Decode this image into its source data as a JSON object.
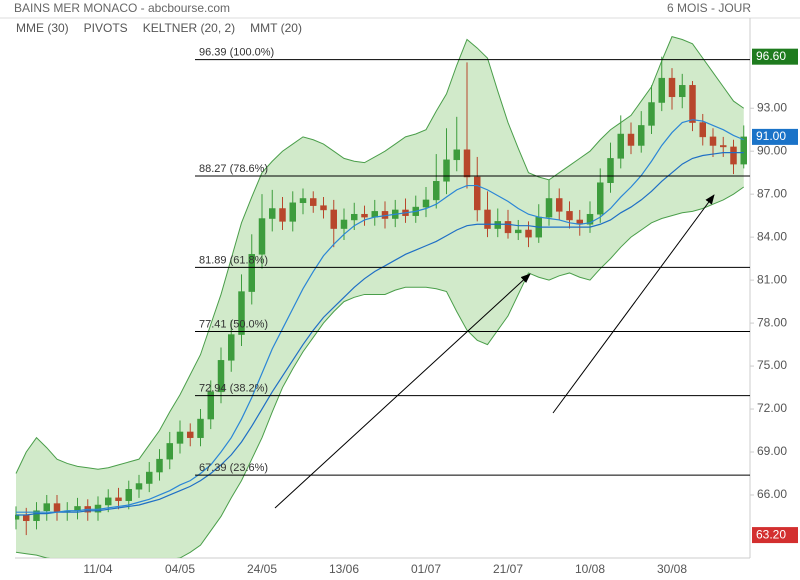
{
  "chart_data": {
    "type": "candlestick",
    "title": "BAINS MER MONACO - abcbourse.com",
    "subtitle": "6 MOIS - JOUR",
    "categories": [
      null,
      null,
      null,
      null,
      null,
      null,
      null,
      null,
      "11/04",
      null,
      null,
      null,
      null,
      null,
      null,
      null,
      "04/05",
      null,
      null,
      null,
      null,
      null,
      null,
      null,
      "24/05",
      null,
      null,
      null,
      null,
      null,
      null,
      null,
      "13/06",
      null,
      null,
      null,
      null,
      null,
      null,
      null,
      "01/07",
      null,
      null,
      null,
      null,
      null,
      null,
      null,
      "21/07",
      null,
      null,
      null,
      null,
      null,
      null,
      null,
      "10/08",
      null,
      null,
      null,
      null,
      null,
      null,
      null,
      "30/08",
      null,
      null,
      null,
      null,
      null,
      null,
      null
    ],
    "open": [
      64.3,
      64.6,
      64.2,
      64.9,
      65.4,
      64.8,
      64.9,
      65.2,
      64.8,
      65.3,
      65.8,
      65.6,
      66.4,
      66.8,
      67.6,
      68.5,
      69.6,
      70.4,
      70.0,
      71.3,
      73.2,
      75.4,
      77.2,
      80.2,
      82.8,
      85.3,
      86.0,
      85.1,
      86.4,
      86.7,
      86.2,
      85.9,
      84.6,
      85.2,
      85.6,
      85.4,
      85.8,
      85.3,
      85.9,
      85.5,
      86.1,
      86.6,
      87.9,
      89.4,
      90.1,
      88.2,
      85.9,
      84.6,
      85.1,
      84.3,
      84.5,
      84.0,
      85.4,
      86.7,
      85.8,
      85.2,
      84.9,
      85.6,
      87.8,
      89.5,
      91.2,
      90.4,
      91.8,
      93.4,
      95.1,
      93.8,
      94.6,
      92.0,
      91.0,
      90.4,
      90.3,
      89.1
    ],
    "high": [
      65.2,
      65.1,
      65.5,
      66.0,
      66.0,
      65.5,
      65.8,
      65.7,
      65.9,
      66.4,
      66.5,
      67.0,
      67.4,
      68.3,
      69.2,
      70.4,
      71.2,
      71.0,
      72.0,
      74.0,
      76.3,
      78.2,
      81.4,
      84.2,
      87.0,
      87.3,
      86.8,
      87.2,
      87.4,
      87.2,
      86.8,
      86.6,
      86.0,
      86.4,
      86.2,
      86.6,
      86.5,
      86.6,
      86.7,
      86.9,
      87.5,
      89.8,
      91.6,
      92.4,
      96.2,
      89.6,
      87.2,
      86.0,
      85.9,
      85.2,
      85.1,
      86.3,
      88.0,
      87.4,
      86.5,
      85.9,
      86.5,
      88.8,
      90.6,
      92.5,
      92.0,
      92.8,
      94.6,
      96.6,
      95.8,
      95.4,
      94.9,
      92.6,
      91.6,
      91.0,
      90.8,
      91.8
    ],
    "low": [
      63.6,
      63.2,
      63.6,
      64.2,
      64.2,
      64.2,
      64.3,
      64.2,
      64.2,
      64.8,
      65.0,
      65.0,
      65.8,
      66.2,
      67.0,
      67.8,
      68.9,
      69.4,
      69.4,
      70.6,
      72.4,
      74.6,
      76.4,
      79.3,
      81.8,
      84.4,
      84.5,
      84.4,
      85.6,
      85.7,
      85.3,
      83.3,
      83.8,
      84.5,
      84.8,
      84.8,
      84.6,
      84.7,
      85.0,
      85.0,
      85.4,
      86.0,
      87.0,
      88.6,
      87.4,
      85.1,
      84.0,
      84.0,
      83.9,
      83.8,
      83.3,
      83.6,
      84.8,
      85.2,
      84.6,
      84.1,
      84.3,
      85.0,
      87.1,
      88.8,
      89.8,
      89.9,
      91.2,
      92.8,
      92.9,
      93.0,
      91.4,
      90.4,
      89.6,
      89.6,
      88.4,
      88.8
    ],
    "close": [
      64.6,
      64.2,
      64.9,
      65.4,
      64.8,
      64.9,
      65.2,
      64.8,
      65.3,
      65.8,
      65.6,
      66.4,
      66.8,
      67.6,
      68.5,
      69.6,
      70.4,
      70.0,
      71.3,
      73.2,
      75.4,
      77.2,
      80.2,
      82.8,
      85.3,
      86.0,
      85.1,
      86.4,
      86.7,
      86.2,
      85.9,
      84.6,
      85.2,
      85.6,
      85.4,
      85.8,
      85.3,
      85.9,
      85.5,
      86.1,
      86.6,
      87.9,
      89.4,
      90.1,
      88.2,
      85.9,
      84.6,
      85.1,
      84.3,
      84.5,
      84.0,
      85.4,
      86.7,
      85.8,
      85.2,
      84.9,
      85.6,
      87.8,
      89.5,
      91.2,
      90.4,
      91.8,
      93.4,
      95.1,
      93.8,
      94.6,
      92.0,
      91.0,
      90.4,
      90.3,
      89.1,
      91.0
    ],
    "up_color": "#3d9c3d",
    "down_color": "#b8472c",
    "overlays": [
      {
        "name": "MME (30)",
        "kind": "line",
        "color": "#1f6fc5",
        "values": [
          64.6,
          64.6,
          64.7,
          64.7,
          64.8,
          64.8,
          64.8,
          64.9,
          64.9,
          65.0,
          65.1,
          65.2,
          65.3,
          65.5,
          65.7,
          66.0,
          66.3,
          66.6,
          67.0,
          67.5,
          68.1,
          68.8,
          69.7,
          70.8,
          72.0,
          73.2,
          74.3,
          75.4,
          76.5,
          77.5,
          78.4,
          79.1,
          79.8,
          80.5,
          81.1,
          81.6,
          82.0,
          82.4,
          82.8,
          83.1,
          83.4,
          83.7,
          84.1,
          84.5,
          84.8,
          84.9,
          84.9,
          84.9,
          84.9,
          84.8,
          84.8,
          84.7,
          84.7,
          84.7,
          84.7,
          84.7,
          84.7,
          84.9,
          85.2,
          85.7,
          86.1,
          86.6,
          87.2,
          87.9,
          88.5,
          89.1,
          89.5,
          89.7,
          89.8,
          89.9,
          89.9,
          89.9
        ]
      },
      {
        "name": "PIVOTS",
        "kind": "levels",
        "color": "#000000",
        "levels": [
          {
            "value": 96.39,
            "label": "96.39  (100.0%)"
          },
          {
            "value": 88.27,
            "label": "88.27  (78.6%)"
          },
          {
            "value": 81.89,
            "label": "81.89  (61.8%)"
          },
          {
            "value": 77.41,
            "label": "77.41  (50.0%)"
          },
          {
            "value": 72.94,
            "label": "72.94  (38.2%)"
          },
          {
            "value": 67.39,
            "label": "67.39  (23.6%)"
          }
        ]
      },
      {
        "name": "KELTNER (20, 2)",
        "kind": "band",
        "color": "#4a9e4a",
        "fill": "#c9e6c1",
        "upper": [
          67.5,
          69,
          70,
          69.3,
          68.5,
          68.2,
          68,
          67.9,
          67.8,
          67.9,
          68.1,
          68.3,
          68.5,
          69.5,
          70.5,
          71.8,
          73,
          74.4,
          75.8,
          77.9,
          80,
          82.5,
          85,
          86.8,
          88.5,
          89.3,
          90,
          90.5,
          91,
          90.8,
          90.5,
          90,
          89.5,
          89.3,
          89.2,
          89.6,
          90,
          90.5,
          91,
          91.2,
          91.5,
          92.8,
          94,
          96,
          97.8,
          97.2,
          96.5,
          94.2,
          92,
          90.2,
          88.5,
          88.2,
          88,
          88.5,
          89,
          89.5,
          90,
          90.8,
          91.5,
          92,
          92.5,
          93.5,
          94.5,
          96.3,
          98,
          97.8,
          97.5,
          96.5,
          95.5,
          94.5,
          93.5,
          93.0
        ],
        "lower": [
          62,
          61.9,
          61.8,
          61.6,
          61.5,
          61.3,
          61.1,
          60.9,
          60.8,
          60.9,
          61,
          61.1,
          61.2,
          61.3,
          61.4,
          61.5,
          61.6,
          62,
          62.5,
          63.5,
          64.5,
          65.8,
          67,
          68.5,
          70,
          71.8,
          73.5,
          74.8,
          76,
          77,
          78,
          78.8,
          79.5,
          79.8,
          80,
          80,
          80,
          80.3,
          80.5,
          80.5,
          80.5,
          80.4,
          80.2,
          78.8,
          77.5,
          76.8,
          76.5,
          77.5,
          78.5,
          80,
          81.5,
          81.2,
          81,
          81.3,
          81.5,
          81.2,
          81,
          81.8,
          82.5,
          83.3,
          84,
          84.5,
          85,
          85.3,
          85.5,
          85.7,
          85.8,
          86,
          86.3,
          86.6,
          87,
          87.5
        ]
      },
      {
        "name": "MMT (20)",
        "kind": "line",
        "color": "#2b86d6",
        "values": [
          64.8,
          64.8,
          64.8,
          64.8,
          64.8,
          64.9,
          64.9,
          65.0,
          65.0,
          65.1,
          65.2,
          65.3,
          65.5,
          65.7,
          66.0,
          66.3,
          66.7,
          67.0,
          67.5,
          68.1,
          69.0,
          70.0,
          71.3,
          72.8,
          74.5,
          76.2,
          77.6,
          79.0,
          80.4,
          81.6,
          82.7,
          83.5,
          84.2,
          84.8,
          85.2,
          85.4,
          85.5,
          85.6,
          85.7,
          85.8,
          86.0,
          86.3,
          86.8,
          87.3,
          87.6,
          87.6,
          87.3,
          86.9,
          86.5,
          86.0,
          85.6,
          85.4,
          85.3,
          85.2,
          85.0,
          84.9,
          85.0,
          85.4,
          86.0,
          86.8,
          87.5,
          88.3,
          89.3,
          90.4,
          91.3,
          92.0,
          92.2,
          92.1,
          91.8,
          91.5,
          91.1,
          90.8
        ]
      }
    ],
    "price_labels": [
      {
        "value": 96.6,
        "label": "96.60",
        "color": "#1e7b1e"
      },
      {
        "value": 91.0,
        "label": "91.00",
        "color": "#1a73c8"
      },
      {
        "value": 63.2,
        "label": "63.20",
        "color": "#d32f2f"
      }
    ],
    "ylim": [
      61.6,
      99.3
    ],
    "yticks": [
      {
        "value": 66,
        "label": "66.00"
      },
      {
        "value": 69,
        "label": "69.00"
      },
      {
        "value": 72,
        "label": "72.00"
      },
      {
        "value": 75,
        "label": "75.00"
      },
      {
        "value": 78,
        "label": "78.00"
      },
      {
        "value": 81,
        "label": "81.00"
      },
      {
        "value": 84,
        "label": "84.00"
      },
      {
        "value": 87,
        "label": "87.00"
      },
      {
        "value": 90,
        "label": "90.00"
      },
      {
        "value": 93,
        "label": "93.00"
      }
    ],
    "grid": false
  }
}
